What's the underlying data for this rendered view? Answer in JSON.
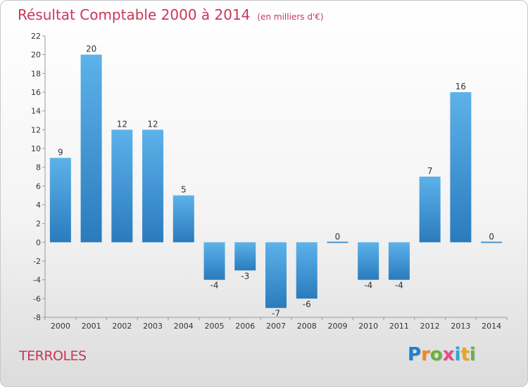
{
  "title": "Résultat Comptable 2000 à 2014",
  "unit": "(en milliers d'€)",
  "commune": "TERROLES",
  "logo": {
    "letters": [
      "P",
      "r",
      "o",
      "x",
      "i",
      "t",
      "i"
    ],
    "colors": [
      "#1f7fd0",
      "#f08a1c",
      "#6ab03c",
      "#e64a8c",
      "#2ea6d8",
      "#f0a21c",
      "#6ab03c"
    ]
  },
  "chart_data": {
    "type": "bar",
    "categories": [
      "2000",
      "2001",
      "2002",
      "2003",
      "2004",
      "2005",
      "2006",
      "2007",
      "2008",
      "2009",
      "2010",
      "2011",
      "2012",
      "2013",
      "2014"
    ],
    "values": [
      9,
      20,
      12,
      12,
      5,
      -4,
      -3,
      -7,
      -6,
      0,
      -4,
      -4,
      7,
      16,
      0
    ],
    "value_labels": [
      "9",
      "20",
      "12",
      "12",
      "5",
      "-4",
      "-3",
      "-7",
      "-6",
      "0",
      "-4",
      "-4",
      "7",
      "16",
      "0"
    ],
    "ylim": [
      -8,
      22
    ],
    "yticks": [
      -8,
      -6,
      -4,
      -2,
      0,
      2,
      4,
      6,
      8,
      10,
      12,
      14,
      16,
      18,
      20,
      22
    ],
    "grid": false,
    "colors": {
      "bar_top": "#5db2ea",
      "bar_bottom": "#2a7bbd",
      "axis": "#999999",
      "text": "#333333"
    }
  }
}
